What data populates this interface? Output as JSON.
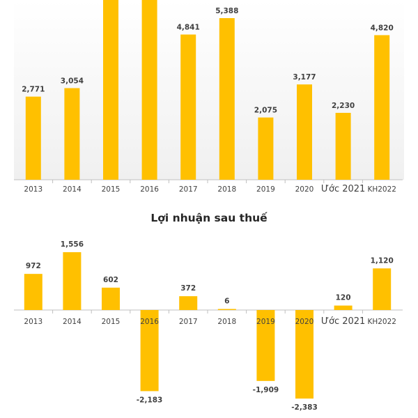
{
  "colors": {
    "bar": "#FFC000",
    "axis": "#BFBFBF",
    "text": "#404040"
  },
  "chart_data": [
    {
      "type": "bar",
      "title": "",
      "categories": [
        "2013",
        "2014",
        "2015",
        "2016",
        "2017",
        "2018",
        "2019",
        "2020",
        "Ước 2021",
        "KH2022"
      ],
      "values": [
        2771,
        3054,
        null,
        null,
        4841,
        5388,
        2075,
        3177,
        2230,
        4820
      ],
      "value_labels": [
        "2,771",
        "3,054",
        "",
        "",
        "4,841",
        "5,388",
        "2,075",
        "3,177",
        "2,230",
        "4,820"
      ],
      "note": "",
      "grid": false,
      "legend": "none"
    },
    {
      "type": "bar",
      "title": "Lợi nhuận sau thuế",
      "categories": [
        "2013",
        "2014",
        "2015",
        "2016",
        "2017",
        "2018",
        "2019",
        "2020",
        "Ước 2021",
        "KH2022"
      ],
      "values": [
        972,
        1556,
        602,
        -2183,
        372,
        6,
        -1909,
        -2383,
        120,
        1120
      ],
      "value_labels": [
        "972",
        "1,556",
        "602",
        "-2,183",
        "372",
        "6",
        "-1,909",
        "-2,383",
        "120",
        "1,120"
      ],
      "grid": false,
      "legend": "none"
    }
  ]
}
